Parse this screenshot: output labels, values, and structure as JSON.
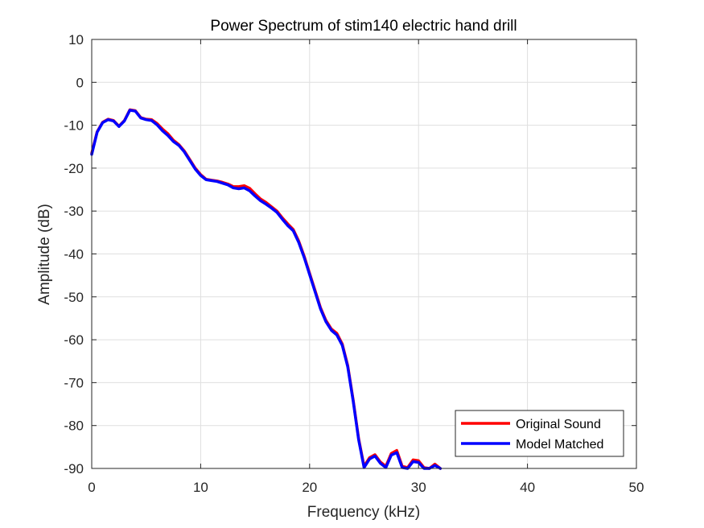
{
  "chart_data": {
    "type": "line",
    "title": "Power Spectrum of stim140 electric hand drill",
    "xlabel": "Frequency (kHz)",
    "ylabel": "Amplitude (dB)",
    "xlim": [
      0,
      50
    ],
    "ylim": [
      -90,
      10
    ],
    "xticks": [
      0,
      10,
      20,
      30,
      40,
      50
    ],
    "yticks": [
      10,
      0,
      -10,
      -20,
      -30,
      -40,
      -50,
      -60,
      -70,
      -80,
      -90
    ],
    "grid": true,
    "legend_position": "bottom-right",
    "series": [
      {
        "name": "Original Sound",
        "color": "#ff0000",
        "x": [
          0,
          0.5,
          1,
          1.5,
          2,
          2.5,
          3,
          3.5,
          4,
          4.5,
          5,
          5.5,
          6,
          6.5,
          7,
          7.5,
          8,
          8.5,
          9,
          9.5,
          10,
          10.5,
          11,
          11.5,
          12,
          12.5,
          13,
          13.5,
          14,
          14.5,
          15,
          15.5,
          16,
          16.5,
          17,
          17.5,
          18,
          18.5,
          19,
          19.5,
          20,
          20.5,
          21,
          21.5,
          22,
          22.5,
          23,
          23.5,
          24,
          24.5,
          25,
          25.5,
          26,
          26.5,
          27,
          27.5,
          28,
          28.5,
          29,
          29.5,
          30,
          30.5,
          31,
          31.5,
          32
        ],
        "y": [
          -16.5,
          -11.5,
          -9.3,
          -8.6,
          -8.9,
          -10.2,
          -8.9,
          -6.4,
          -6.6,
          -8.2,
          -8.6,
          -8.7,
          -9.6,
          -10.9,
          -12.0,
          -13.5,
          -14.5,
          -16.0,
          -18.0,
          -20.0,
          -21.5,
          -22.6,
          -22.8,
          -23.0,
          -23.3,
          -23.7,
          -24.3,
          -24.3,
          -24.1,
          -24.7,
          -26.0,
          -27.2,
          -28.0,
          -29.0,
          -30.0,
          -31.6,
          -33.0,
          -34.3,
          -37.0,
          -40.5,
          -44.5,
          -48.5,
          -52.5,
          -55.5,
          -57.5,
          -58.5,
          -61.0,
          -66.0,
          -74.0,
          -83.0,
          -89.5,
          -87.5,
          -86.8,
          -88.5,
          -89.5,
          -86.5,
          -85.8,
          -89.5,
          -89.8,
          -88.0,
          -88.2,
          -89.8,
          -90.0,
          -89.0,
          -90.0
        ]
      },
      {
        "name": "Model Matched",
        "color": "#0000ff",
        "x": [
          0,
          0.5,
          1,
          1.5,
          2,
          2.5,
          3,
          3.5,
          4,
          4.5,
          5,
          5.5,
          6,
          6.5,
          7,
          7.5,
          8,
          8.5,
          9,
          9.5,
          10,
          10.5,
          11,
          11.5,
          12,
          12.5,
          13,
          13.5,
          14,
          14.5,
          15,
          15.5,
          16,
          16.5,
          17,
          17.5,
          18,
          18.5,
          19,
          19.5,
          20,
          20.5,
          21,
          21.5,
          22,
          22.5,
          23,
          23.5,
          24,
          24.5,
          25,
          25.5,
          26,
          26.5,
          27,
          27.5,
          28,
          28.5,
          29,
          29.5,
          30,
          30.5,
          31,
          31.5,
          32
        ],
        "y": [
          -16.8,
          -11.6,
          -9.4,
          -8.7,
          -9.0,
          -10.3,
          -9.0,
          -6.5,
          -6.7,
          -8.3,
          -8.7,
          -8.9,
          -9.9,
          -11.3,
          -12.4,
          -13.8,
          -14.7,
          -16.2,
          -18.2,
          -20.2,
          -21.7,
          -22.7,
          -22.9,
          -23.1,
          -23.5,
          -23.9,
          -24.6,
          -24.8,
          -24.6,
          -25.3,
          -26.5,
          -27.6,
          -28.4,
          -29.3,
          -30.3,
          -31.9,
          -33.4,
          -34.6,
          -37.3,
          -40.8,
          -44.8,
          -48.8,
          -52.8,
          -55.8,
          -57.8,
          -58.9,
          -61.3,
          -66.3,
          -74.3,
          -83.3,
          -89.8,
          -87.8,
          -87.1,
          -88.8,
          -89.8,
          -86.9,
          -86.3,
          -89.8,
          -90.0,
          -88.4,
          -88.6,
          -90.0,
          -90.0,
          -89.3,
          -90.0
        ]
      }
    ]
  }
}
